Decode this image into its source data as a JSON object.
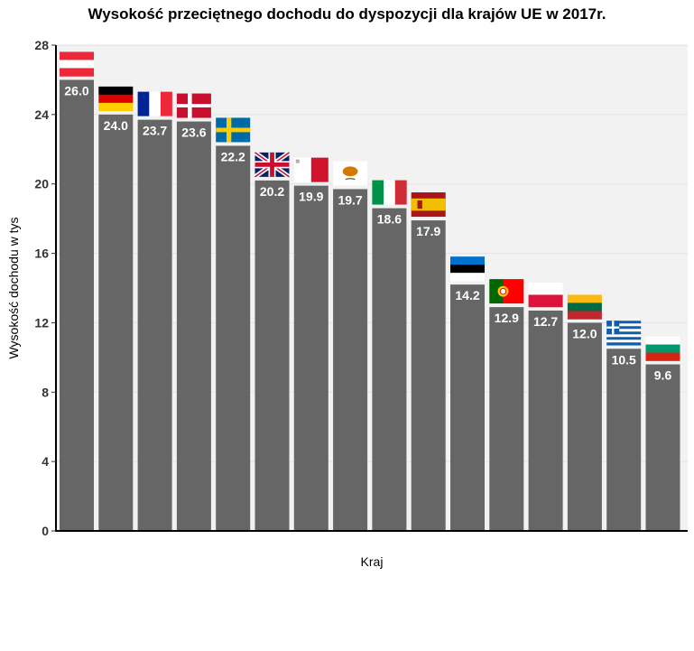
{
  "chart_data": {
    "type": "bar",
    "title": "Wysokość przeciętnego dochodu do dyspozycji dla krajów UE w 2017r.",
    "xlabel": "Kraj",
    "ylabel": "Wysokość dochodu w tys",
    "ylim": [
      0,
      28
    ],
    "yticks": [
      0,
      4,
      8,
      12,
      16,
      20,
      24,
      28
    ],
    "grid": true,
    "bar_color": "#666666",
    "panel_color": "#f2f2f2",
    "categories": [
      "Austria",
      "Niemcy",
      "Francja",
      "Dania",
      "Szwecja",
      "Wielka Brytania",
      "Malta",
      "Cypr",
      "Włochy",
      "Hiszpania",
      "Estonia",
      "Portugalia",
      "Polska",
      "Litwa",
      "Grecja",
      "Bułgaria"
    ],
    "values": [
      26.0,
      24.0,
      23.7,
      23.6,
      22.2,
      20.2,
      19.9,
      19.7,
      18.6,
      17.9,
      14.2,
      12.9,
      12.7,
      12.0,
      10.5,
      9.6
    ],
    "value_labels": [
      "26.0",
      "24.0",
      "23.7",
      "23.6",
      "22.2",
      "20.2",
      "19.9",
      "19.7",
      "18.6",
      "17.9",
      "14.2",
      "12.9",
      "12.7",
      "12.0",
      "10.5",
      "9.6"
    ],
    "flag_icons": [
      "austria-flag",
      "germany-flag",
      "france-flag",
      "denmark-flag",
      "sweden-flag",
      "uk-flag",
      "malta-flag",
      "cyprus-flag",
      "italy-flag",
      "spain-flag",
      "estonia-flag",
      "portugal-flag",
      "poland-flag",
      "lithuania-flag",
      "greece-flag",
      "bulgaria-flag"
    ]
  }
}
